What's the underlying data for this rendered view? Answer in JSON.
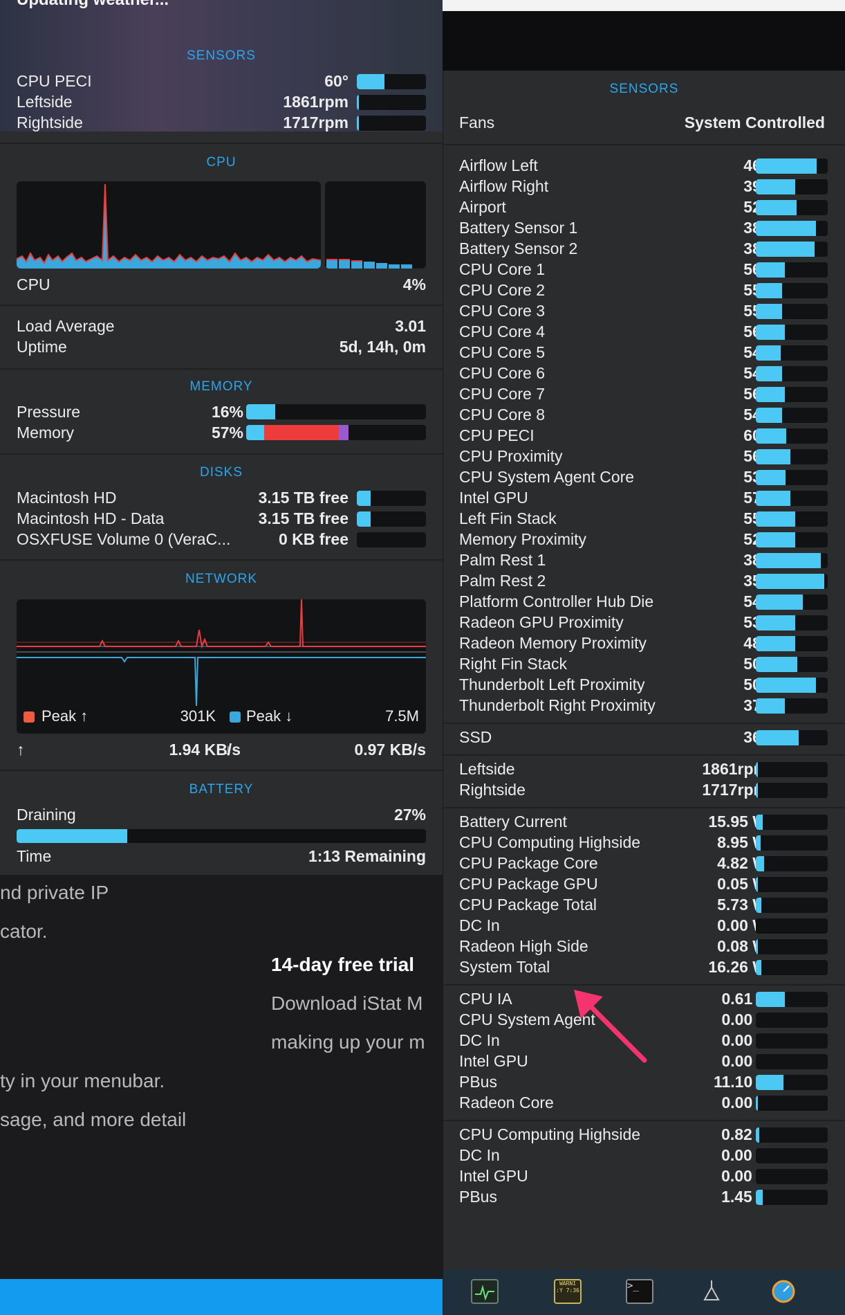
{
  "background": {
    "lines": [
      "nd private IP",
      "cator.",
      "ty in your menubar.",
      "sage, and more detail"
    ],
    "trial_title": "14-day free trial",
    "trial_lines": [
      "Download iStat M",
      "making up your m"
    ]
  },
  "left": {
    "title": "Updating weather...",
    "sensors": {
      "title": "SENSORS",
      "rows": [
        {
          "label": "CPU PECI",
          "value": "60°",
          "fill": 0.4
        },
        {
          "label": "Leftside",
          "value": "1861rpm",
          "fill": 0.02
        },
        {
          "label": "Rightside",
          "value": "1717rpm",
          "fill": 0.02
        }
      ]
    },
    "cpu": {
      "title": "CPU",
      "label": "CPU",
      "value": "4%",
      "load_label": "Load Average",
      "load_value": "3.01",
      "uptime_label": "Uptime",
      "uptime_value": "5d, 14h, 0m"
    },
    "memory": {
      "title": "MEMORY",
      "pressure_label": "Pressure",
      "pressure_value": "16%",
      "pressure_fill": 0.16,
      "memory_label": "Memory",
      "memory_value": "57%",
      "memory_fill": 0.57
    },
    "disks": {
      "title": "DISKS",
      "rows": [
        {
          "label": "Macintosh HD",
          "value": "3.15 TB free",
          "fill": 0.2
        },
        {
          "label": "Macintosh HD - Data",
          "value": "3.15 TB free",
          "fill": 0.2
        },
        {
          "label": "OSXFUSE Volume 0 (VeraC...",
          "value": "0 KB free",
          "fill": 0
        }
      ]
    },
    "network": {
      "title": "NETWORK",
      "peak_up_label": "Peak ↑",
      "peak_up_value": "301K",
      "peak_down_label": "Peak ↓",
      "peak_down_value": "7.5M",
      "up_arrow": "↑",
      "up_rate": "1.94 KB/s",
      "down_arrow": "↓",
      "down_rate": "0.97 KB/s"
    },
    "battery": {
      "title": "BATTERY",
      "status_label": "Draining",
      "status_value": "27%",
      "fill": 0.27,
      "time_label": "Time",
      "time_value": "1:13 Remaining"
    }
  },
  "right": {
    "title": "SENSORS",
    "fans_label": "Fans",
    "fans_value": "System Controlled",
    "temps": [
      {
        "label": "Airflow Left",
        "value": "46°",
        "fill": 0.85
      },
      {
        "label": "Airflow Right",
        "value": "39°",
        "fill": 0.55
      },
      {
        "label": "Airport",
        "value": "52°",
        "fill": 0.57
      },
      {
        "label": "Battery Sensor 1",
        "value": "38°",
        "fill": 0.84
      },
      {
        "label": "Battery Sensor 2",
        "value": "38°",
        "fill": 0.82
      },
      {
        "label": "CPU Core 1",
        "value": "56°",
        "fill": 0.4
      },
      {
        "label": "CPU Core 2",
        "value": "55°",
        "fill": 0.37
      },
      {
        "label": "CPU Core 3",
        "value": "55°",
        "fill": 0.37
      },
      {
        "label": "CPU Core 4",
        "value": "56°",
        "fill": 0.4
      },
      {
        "label": "CPU Core 5",
        "value": "54°",
        "fill": 0.35
      },
      {
        "label": "CPU Core 6",
        "value": "54°",
        "fill": 0.37
      },
      {
        "label": "CPU Core 7",
        "value": "56°",
        "fill": 0.4
      },
      {
        "label": "CPU Core 8",
        "value": "54°",
        "fill": 0.37
      },
      {
        "label": "CPU PECI",
        "value": "60°",
        "fill": 0.42
      },
      {
        "label": "CPU Proximity",
        "value": "56°",
        "fill": 0.48
      },
      {
        "label": "CPU System Agent Core",
        "value": "53°",
        "fill": 0.41
      },
      {
        "label": "Intel GPU",
        "value": "57°",
        "fill": 0.48
      },
      {
        "label": "Left Fin Stack",
        "value": "55°",
        "fill": 0.55
      },
      {
        "label": "Memory Proximity",
        "value": "52°",
        "fill": 0.55
      },
      {
        "label": "Palm Rest 1",
        "value": "38°",
        "fill": 0.9
      },
      {
        "label": "Palm Rest 2",
        "value": "35°",
        "fill": 0.95
      },
      {
        "label": "Platform Controller Hub Die",
        "value": "54°",
        "fill": 0.65
      },
      {
        "label": "Radeon GPU Proximity",
        "value": "53°",
        "fill": 0.55
      },
      {
        "label": "Radeon Memory Proximity",
        "value": "48°",
        "fill": 0.55
      },
      {
        "label": "Right Fin Stack",
        "value": "50°",
        "fill": 0.58
      },
      {
        "label": "Thunderbolt Left Proximity",
        "value": "50°",
        "fill": 0.84
      },
      {
        "label": "Thunderbolt Right Proximity",
        "value": "37°",
        "fill": 0.4
      }
    ],
    "ssd": {
      "label": "SSD",
      "value": "36°",
      "fill": 0.6
    },
    "fans": [
      {
        "label": "Leftside",
        "value": "1861rpm",
        "fill": 0.02
      },
      {
        "label": "Rightside",
        "value": "1717rpm",
        "fill": 0.02
      }
    ],
    "power": [
      {
        "label": "Battery Current",
        "value": "15.95 W",
        "fill": 0.1
      },
      {
        "label": "CPU Computing Highside",
        "value": "8.95 W",
        "fill": 0.07
      },
      {
        "label": "CPU Package Core",
        "value": "4.82 W",
        "fill": 0.12
      },
      {
        "label": "CPU Package GPU",
        "value": "0.05 W",
        "fill": 0.02
      },
      {
        "label": "CPU Package Total",
        "value": "5.73 W",
        "fill": 0.08
      },
      {
        "label": "DC In",
        "value": "0.00 W",
        "fill": 0
      },
      {
        "label": "Radeon High Side",
        "value": "0.08 W",
        "fill": 0.02
      },
      {
        "label": "System Total",
        "value": "16.26 W",
        "fill": 0.08
      }
    ],
    "voltage": [
      {
        "label": "CPU IA",
        "value": "0.61 V",
        "fill": 0.4
      },
      {
        "label": "CPU System Agent",
        "value": "0.00 V",
        "fill": 0
      },
      {
        "label": "DC In",
        "value": "0.00 V",
        "fill": 0
      },
      {
        "label": "Intel GPU",
        "value": "0.00 V",
        "fill": 0
      },
      {
        "label": "PBus",
        "value": "11.10 V",
        "fill": 0.38
      },
      {
        "label": "Radeon Core",
        "value": "0.00 V",
        "fill": 0.02
      }
    ],
    "current": [
      {
        "label": "CPU Computing Highside",
        "value": "0.82 A",
        "fill": 0.05
      },
      {
        "label": "DC In",
        "value": "0.00 A",
        "fill": 0
      },
      {
        "label": "Intel GPU",
        "value": "0.00 A",
        "fill": 0
      },
      {
        "label": "PBus",
        "value": "1.45 A",
        "fill": 0.1
      }
    ]
  },
  "dock": {
    "icons": [
      "activity-monitor-icon",
      "console-icon",
      "terminal-icon",
      "network-utility-icon",
      "istat-icon"
    ],
    "console_text": "WARNI\n:Y 7:36"
  }
}
